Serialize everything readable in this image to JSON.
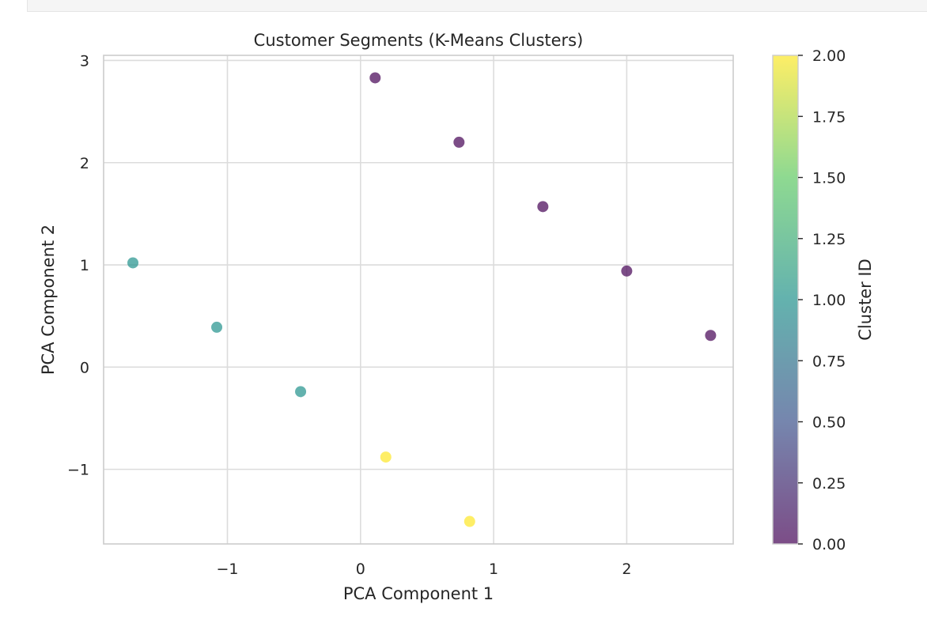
{
  "chart_data": {
    "type": "scatter",
    "title": "Customer Segments (K-Means Clusters)",
    "xlabel": "PCA Component 1",
    "ylabel": "PCA Component 2",
    "xlim": [
      -1.93,
      2.8
    ],
    "ylim": [
      -1.73,
      3.05
    ],
    "xticks": [
      -1,
      0,
      1,
      2
    ],
    "xtick_labels": [
      "−1",
      "0",
      "1",
      "2"
    ],
    "yticks": [
      -1,
      0,
      1,
      2,
      3
    ],
    "ytick_labels": [
      "−1",
      "0",
      "1",
      "2",
      "3"
    ],
    "grid": true,
    "points": [
      {
        "x": 0.11,
        "y": 2.83,
        "cluster": 0
      },
      {
        "x": 0.74,
        "y": 2.2,
        "cluster": 0
      },
      {
        "x": 1.37,
        "y": 1.57,
        "cluster": 0
      },
      {
        "x": 2.0,
        "y": 0.94,
        "cluster": 0
      },
      {
        "x": 2.63,
        "y": 0.31,
        "cluster": 0
      },
      {
        "x": -1.71,
        "y": 1.02,
        "cluster": 1
      },
      {
        "x": -1.08,
        "y": 0.39,
        "cluster": 1
      },
      {
        "x": -0.45,
        "y": -0.24,
        "cluster": 1
      },
      {
        "x": 0.19,
        "y": -0.88,
        "cluster": 2
      },
      {
        "x": 0.82,
        "y": -1.51,
        "cluster": 2
      }
    ],
    "colorbar": {
      "label": "Cluster ID",
      "range": [
        0,
        2
      ],
      "ticks": [
        0,
        0.25,
        0.5,
        0.75,
        1.0,
        1.25,
        1.5,
        1.75,
        2.0
      ],
      "tick_labels": [
        "0.00",
        "0.25",
        "0.50",
        "0.75",
        "1.00",
        "1.25",
        "1.50",
        "1.75",
        "2.00"
      ],
      "colormap": "viridis",
      "colormap_stops": [
        "#440154",
        "#3b528b",
        "#21918c",
        "#5ec962",
        "#fde725"
      ]
    },
    "marker_alpha": 0.7,
    "grid_color": "#dcdcdc",
    "axes_edge_color": "#cccccc"
  }
}
